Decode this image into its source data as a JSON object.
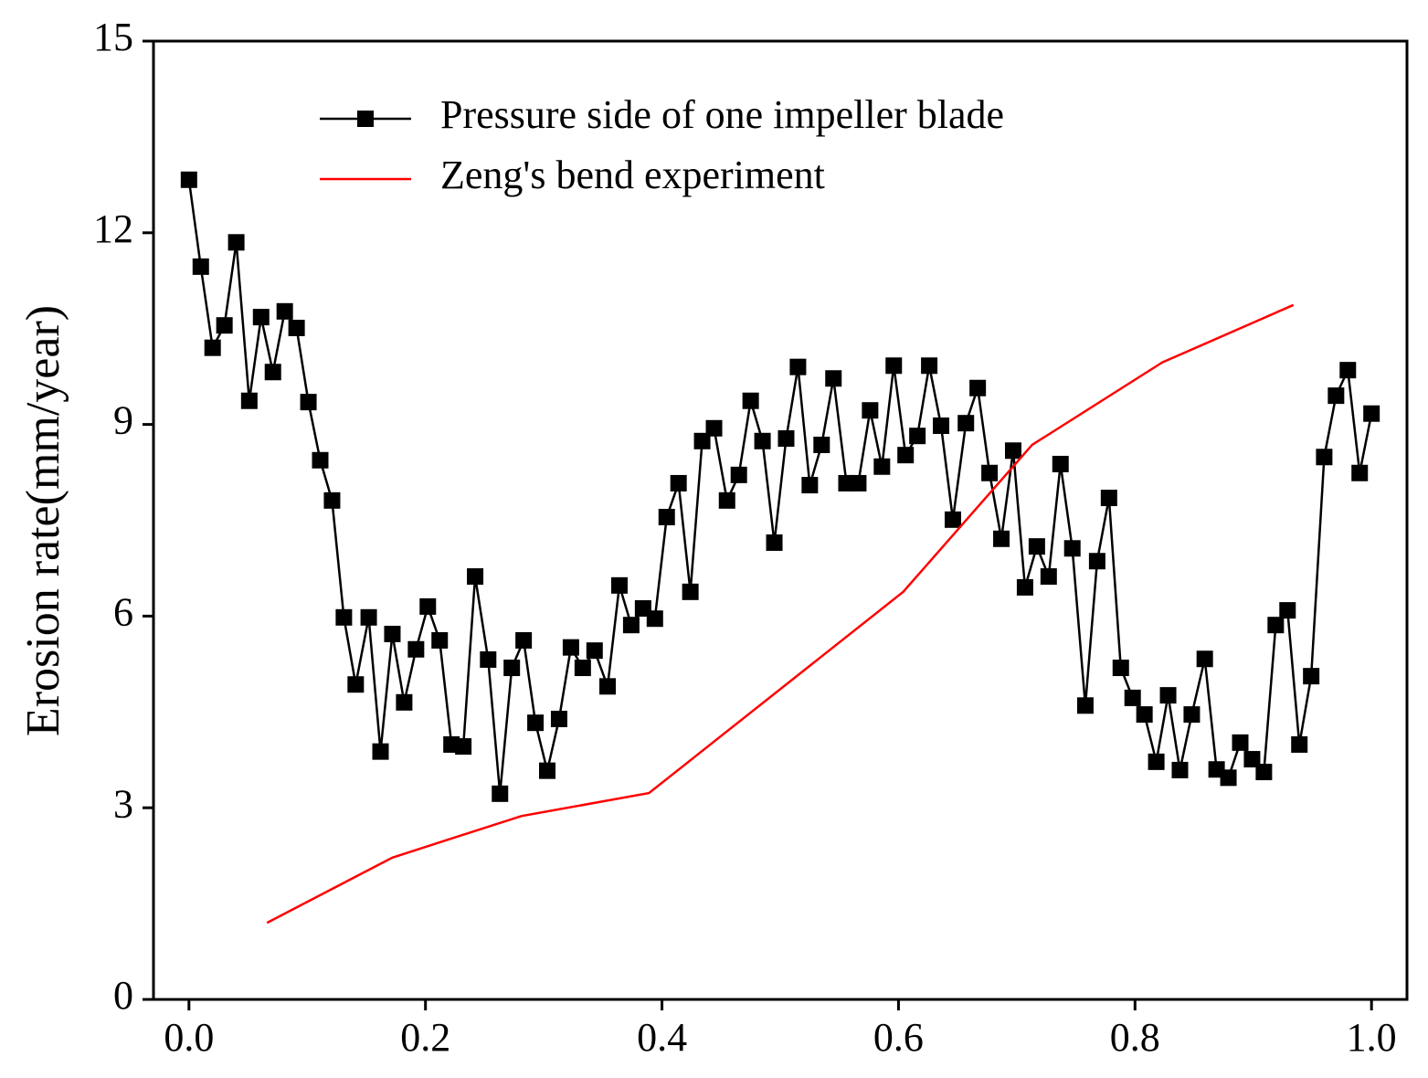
{
  "chart_data": {
    "type": "line",
    "ylabel": "Erosion rate(mm/year)",
    "xlim": [
      -0.03,
      1.03
    ],
    "ylim": [
      0,
      15
    ],
    "xticks": [
      {
        "value": 0,
        "label": "0.0"
      },
      0.2,
      0.4,
      0.6,
      0.8,
      {
        "value": 1,
        "label": "1.0"
      }
    ],
    "yticks": [
      0,
      3,
      6,
      9,
      12,
      15
    ],
    "legend": "top-left",
    "series": [
      {
        "name": "Pressure side of one impeller blade",
        "color": "#000000",
        "marker": "square",
        "x": [
          0,
          0.01,
          0.02,
          0.03,
          0.04,
          0.051,
          0.061,
          0.071,
          0.081,
          0.091,
          0.101,
          0.111,
          0.121,
          0.131,
          0.141,
          0.152,
          0.162,
          0.172,
          0.182,
          0.192,
          0.202,
          0.212,
          0.222,
          0.232,
          0.242,
          0.253,
          0.263,
          0.273,
          0.283,
          0.293,
          0.303,
          0.313,
          0.323,
          0.333,
          0.343,
          0.354,
          0.364,
          0.374,
          0.384,
          0.394,
          0.404,
          0.414,
          0.424,
          0.434,
          0.444,
          0.455,
          0.465,
          0.475,
          0.485,
          0.495,
          0.505,
          0.515,
          0.525,
          0.535,
          0.545,
          0.556,
          0.566,
          0.576,
          0.586,
          0.596,
          0.606,
          0.616,
          0.626,
          0.636,
          0.646,
          0.657,
          0.667,
          0.677,
          0.687,
          0.697,
          0.707,
          0.717,
          0.727,
          0.737,
          0.747,
          0.758,
          0.768,
          0.778,
          0.788,
          0.798,
          0.808,
          0.818,
          0.828,
          0.838,
          0.848,
          0.859,
          0.869,
          0.879,
          0.889,
          0.899,
          0.909,
          0.919,
          0.929,
          0.939,
          0.949,
          0.96,
          0.97,
          0.98,
          0.99,
          1.0
        ],
        "values": [
          12.83,
          11.47,
          10.2,
          10.55,
          11.85,
          9.37,
          10.68,
          9.82,
          10.77,
          10.51,
          9.35,
          8.44,
          7.81,
          5.98,
          4.93,
          5.98,
          3.88,
          5.72,
          4.65,
          5.48,
          6.15,
          5.62,
          3.99,
          3.96,
          6.62,
          5.32,
          3.22,
          5.19,
          5.62,
          4.33,
          3.58,
          4.39,
          5.51,
          5.19,
          5.46,
          4.9,
          6.48,
          5.86,
          6.12,
          5.96,
          7.55,
          8.08,
          6.38,
          8.74,
          8.94,
          7.81,
          8.21,
          9.37,
          8.74,
          7.15,
          8.78,
          9.9,
          8.05,
          8.68,
          9.72,
          8.08,
          8.08,
          9.22,
          8.34,
          9.92,
          8.52,
          8.82,
          9.92,
          8.98,
          7.51,
          9.02,
          9.57,
          8.24,
          7.21,
          8.59,
          6.45,
          7.09,
          6.62,
          8.38,
          7.06,
          4.6,
          6.86,
          7.85,
          5.19,
          4.72,
          4.46,
          3.72,
          4.76,
          3.59,
          4.46,
          5.33,
          3.6,
          3.47,
          4.02,
          3.76,
          3.56,
          5.86,
          6.09,
          3.99,
          5.06,
          8.49,
          9.45,
          9.85,
          8.24,
          9.17
        ]
      },
      {
        "name": "Zeng's bend experiment",
        "color": "#ff0000",
        "x": [
          0.066,
          0.172,
          0.281,
          0.389,
          0.604,
          0.713,
          0.823,
          0.934
        ],
        "values": [
          1.2,
          2.22,
          2.87,
          3.23,
          6.38,
          8.68,
          9.97,
          10.87
        ]
      }
    ]
  }
}
